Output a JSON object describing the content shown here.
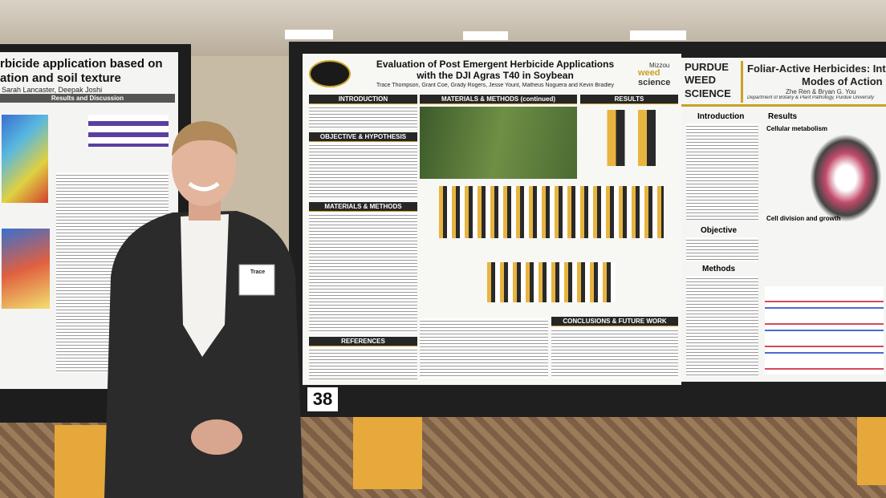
{
  "left_poster": {
    "title_lines": [
      "rbicide application based on",
      "ation and soil texture"
    ],
    "authors": "Sarah Lancaster, Deepak Joshi",
    "section": "Results and Discussion"
  },
  "center_poster": {
    "title_lines": [
      "Evaluation of Post Emergent Herbicide Applications",
      "with the DJI Agras T40 in Soybean"
    ],
    "authors": "Trace Thompson, Grant Coe, Grady Rogers, Jesse Yount, Matheus Noguera and Kevin Bradley",
    "logo": [
      "Mizzou",
      "weed",
      "science"
    ],
    "sections": [
      "INTRODUCTION",
      "OBJECTIVE & HYPOTHESIS",
      "MATERIALS & METHODS",
      "REFERENCES",
      "MATERIALS & METHODS (continued)",
      "RESULTS",
      "CONCLUSIONS & FUTURE WORK"
    ],
    "board_number": "38"
  },
  "right_poster": {
    "logo": [
      "PURDUE",
      "WEED",
      "SCIENCE"
    ],
    "title_lines": [
      "Foliar-Active Herbicides: Inter",
      "Modes of Action"
    ],
    "authors": "Zhe Ren & Bryan G. You",
    "department": "Department of Botany & Plant Pathology, Purdue University",
    "sections": [
      "Introduction",
      "Objective",
      "Methods",
      "Results",
      "Cellular metabolism",
      "Cell division and growth"
    ]
  },
  "name_tag": "Trace"
}
